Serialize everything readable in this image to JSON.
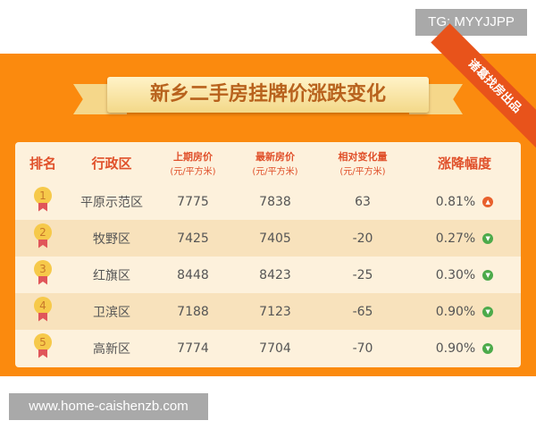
{
  "watermark_top": "TG: MYYJJPP",
  "watermark_bottom": "www.home-caishenzb.com",
  "infographic": {
    "title": "新乡二手房挂牌价涨跌变化",
    "corner_badge": "诸葛找房出品",
    "headers": {
      "rank": "排名",
      "district": "行政区",
      "prev_price": "上期房价",
      "new_price": "最新房价",
      "change": "相对变化量",
      "unit": "(元/平方米)",
      "pct": "涨降幅度"
    },
    "rows": [
      {
        "rank": "1",
        "district": "平原示范区",
        "prev": "7775",
        "new": "7838",
        "change": "63",
        "pct": "0.81%",
        "direction": "up"
      },
      {
        "rank": "2",
        "district": "牧野区",
        "prev": "7425",
        "new": "7405",
        "change": "-20",
        "pct": "0.27%",
        "direction": "down"
      },
      {
        "rank": "3",
        "district": "红旗区",
        "prev": "8448",
        "new": "8423",
        "change": "-25",
        "pct": "0.30%",
        "direction": "down"
      },
      {
        "rank": "4",
        "district": "卫滨区",
        "prev": "7188",
        "new": "7123",
        "change": "-65",
        "pct": "0.90%",
        "direction": "down"
      },
      {
        "rank": "5",
        "district": "高新区",
        "prev": "7774",
        "new": "7704",
        "change": "-70",
        "pct": "0.90%",
        "direction": "down"
      }
    ],
    "colors": {
      "background": "#fb8a0e",
      "up": "#e8602c",
      "down": "#4caa4a",
      "header_text": "#e0502a"
    }
  }
}
